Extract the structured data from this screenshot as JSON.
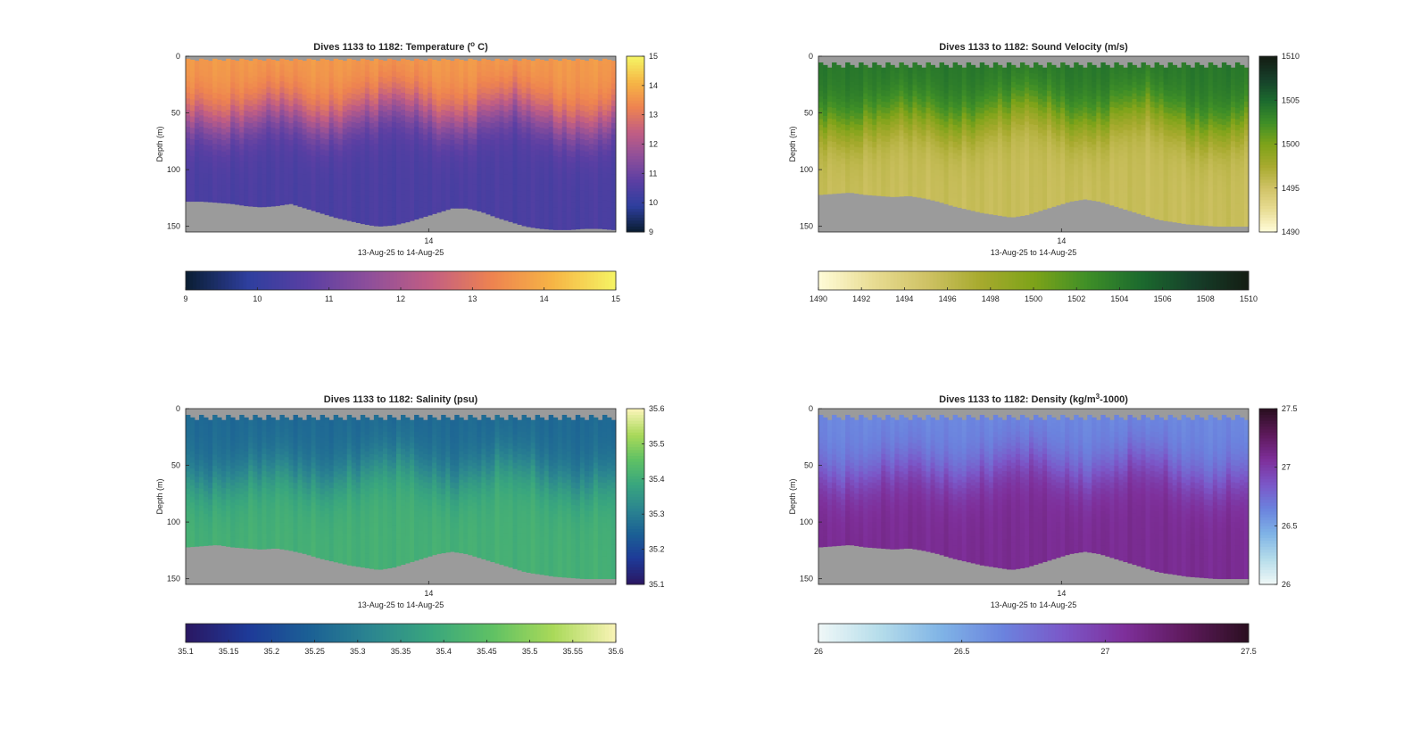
{
  "chart_data": [
    {
      "type": "heatmap",
      "title_prefix": "Dives 1133 to 1182: ",
      "title_main": "Temperature (",
      "title_sup": "o",
      "title_suffix": " C)",
      "xlabel": "13-Aug-25 to 14-Aug-25",
      "ylabel": "Depth (m)",
      "x_ticks": [
        "14"
      ],
      "y_ticks": [
        "0",
        "50",
        "100",
        "150"
      ],
      "ylim": [
        0,
        155
      ],
      "clim": [
        9,
        15
      ],
      "colormap": [
        "#0b1e35",
        "#2e3f9e",
        "#5b3fa3",
        "#8f4f9a",
        "#c25e83",
        "#ee8350",
        "#f6b545",
        "#f5f263"
      ],
      "colorbar_right_ticks": [
        "9",
        "10",
        "11",
        "12",
        "13",
        "14",
        "15"
      ],
      "colorbar_bottom_ticks": [
        "9",
        "10",
        "11",
        "12",
        "13",
        "14",
        "15"
      ],
      "surface_value": 13.7,
      "deep_value": 10.4,
      "thermocline_depth_m": [
        52,
        55,
        60,
        58,
        54,
        50,
        45,
        48,
        55,
        60,
        58,
        52,
        48,
        44,
        40,
        42,
        48,
        55,
        58,
        56,
        50,
        45,
        42,
        45,
        52,
        58,
        62,
        64,
        60,
        56
      ],
      "bottom_depth_m": [
        128,
        128,
        129,
        130,
        132,
        133,
        132,
        130,
        134,
        138,
        142,
        145,
        148,
        150,
        149,
        146,
        142,
        138,
        134,
        134,
        137,
        142,
        146,
        150,
        152,
        153,
        153,
        152,
        152,
        153
      ],
      "surface_gap_m": 4,
      "missing_color": "#9b9b9b"
    },
    {
      "type": "heatmap",
      "title_prefix": "Dives 1133 to 1182: ",
      "title_main": "Sound Velocity (m/s)",
      "title_sup": "",
      "title_suffix": "",
      "xlabel": "13-Aug-25 to 14-Aug-25",
      "ylabel": "Depth (m)",
      "x_ticks": [
        "14"
      ],
      "y_ticks": [
        "0",
        "50",
        "100",
        "150"
      ],
      "ylim": [
        0,
        155
      ],
      "clim": [
        1490,
        1510
      ],
      "colormap": [
        "#fffbd6",
        "#e8dc92",
        "#cfc265",
        "#a7aa2e",
        "#7ea319",
        "#3f8f27",
        "#1c6b2e",
        "#16402a",
        "#141e14"
      ],
      "colorbar_right_ticks": [
        "1490",
        "1495",
        "1500",
        "1505",
        "1510"
      ],
      "colorbar_bottom_ticks": [
        "1490",
        "1492",
        "1494",
        "1496",
        "1498",
        "1500",
        "1502",
        "1504",
        "1506",
        "1508",
        "1510"
      ],
      "surface_value": 1504.2,
      "deep_value": 1495.5,
      "thermocline_depth_m": [
        58,
        62,
        64,
        60,
        56,
        52,
        50,
        52,
        58,
        62,
        60,
        55,
        50,
        46,
        42,
        45,
        52,
        58,
        60,
        58,
        52,
        46,
        44,
        48,
        55,
        62,
        66,
        66,
        62,
        58
      ],
      "bottom_depth_m": [
        122,
        121,
        120,
        122,
        123,
        124,
        123,
        125,
        128,
        132,
        135,
        138,
        140,
        142,
        140,
        136,
        132,
        128,
        126,
        128,
        132,
        136,
        140,
        144,
        146,
        148,
        149,
        150,
        150,
        150
      ],
      "surface_gap_m": 10,
      "missing_color": "#9b9b9b"
    },
    {
      "type": "heatmap",
      "title_prefix": "Dives 1133 to 1182: ",
      "title_main": "Salinity (psu)",
      "title_sup": "",
      "title_suffix": "",
      "xlabel": "13-Aug-25 to 14-Aug-25",
      "ylabel": "Depth (m)",
      "x_ticks": [
        "14"
      ],
      "y_ticks": [
        "0",
        "50",
        "100",
        "150"
      ],
      "ylim": [
        0,
        155
      ],
      "clim": [
        35.1,
        35.6
      ],
      "colormap": [
        "#2a1864",
        "#1e3a98",
        "#1b6095",
        "#2b8590",
        "#39a67e",
        "#5fc164",
        "#a9d959",
        "#f7f3b4"
      ],
      "colorbar_right_ticks": [
        "35.1",
        "35.2",
        "35.3",
        "35.4",
        "35.5",
        "35.6"
      ],
      "colorbar_bottom_ticks": [
        "35.1",
        "35.15",
        "35.2",
        "35.25",
        "35.3",
        "35.35",
        "35.4",
        "35.45",
        "35.5",
        "35.55",
        "35.6"
      ],
      "surface_value": 35.26,
      "deep_value": 35.41,
      "thermocline_depth_m": [
        62,
        66,
        68,
        64,
        60,
        56,
        54,
        56,
        62,
        66,
        64,
        58,
        54,
        50,
        46,
        48,
        56,
        62,
        64,
        62,
        56,
        50,
        48,
        52,
        58,
        64,
        68,
        68,
        64,
        60
      ],
      "bottom_depth_m": [
        122,
        121,
        120,
        122,
        123,
        124,
        123,
        125,
        128,
        132,
        135,
        138,
        140,
        142,
        140,
        136,
        132,
        128,
        126,
        128,
        132,
        136,
        140,
        144,
        146,
        148,
        149,
        150,
        150,
        150
      ],
      "surface_gap_m": 10,
      "missing_color": "#9b9b9b"
    },
    {
      "type": "heatmap",
      "title_prefix": "Dives 1133 to 1182: ",
      "title_main": "Density (kg/m",
      "title_sup": "3",
      "title_suffix": "-1000)",
      "xlabel": "13-Aug-25 to 14-Aug-25",
      "ylabel": "Depth (m)",
      "x_ticks": [
        "14"
      ],
      "y_ticks": [
        "0",
        "50",
        "100",
        "150"
      ],
      "ylim": [
        0,
        155
      ],
      "clim": [
        26,
        27.5
      ],
      "colormap": [
        "#eef7f7",
        "#b4dcea",
        "#7fb3e6",
        "#6b83de",
        "#7b57c8",
        "#7e2f9a",
        "#5e1a5c",
        "#2c0f22"
      ],
      "colorbar_right_ticks": [
        "26",
        "26.5",
        "27",
        "27.5"
      ],
      "colorbar_bottom_ticks": [
        "26",
        "26.5",
        "27",
        "27.5"
      ],
      "surface_value": 26.62,
      "deep_value": 27.1,
      "thermocline_depth_m": [
        58,
        62,
        64,
        60,
        56,
        52,
        50,
        52,
        58,
        62,
        60,
        55,
        50,
        46,
        42,
        45,
        52,
        58,
        60,
        58,
        52,
        46,
        44,
        48,
        55,
        62,
        66,
        66,
        62,
        58
      ],
      "bottom_depth_m": [
        122,
        121,
        120,
        122,
        123,
        124,
        123,
        125,
        128,
        132,
        135,
        138,
        140,
        142,
        140,
        136,
        132,
        128,
        126,
        128,
        132,
        136,
        140,
        144,
        146,
        148,
        149,
        150,
        150,
        150
      ],
      "surface_gap_m": 10,
      "missing_color": "#9b9b9b"
    }
  ]
}
